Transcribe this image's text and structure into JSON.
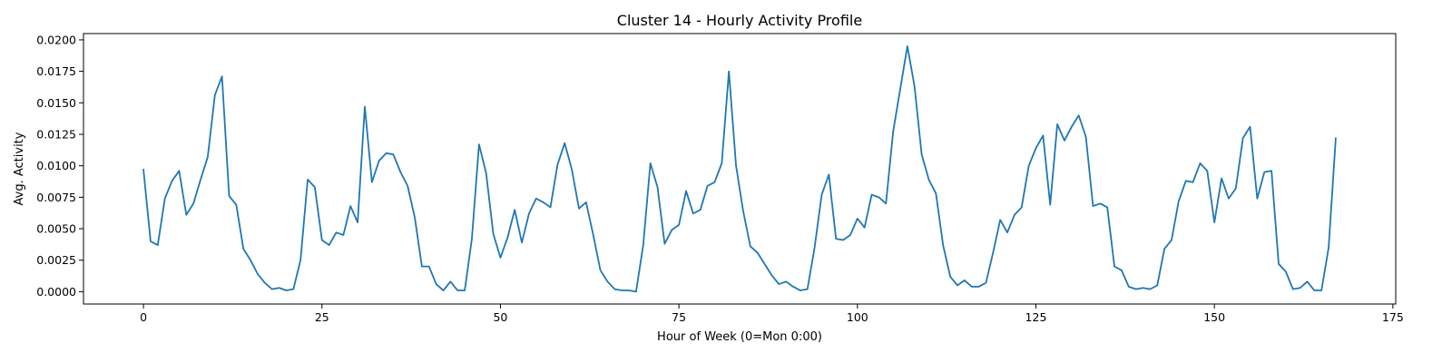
{
  "chart_data": {
    "type": "line",
    "title": "Cluster 14 - Hourly Activity Profile",
    "xlabel": "Hour of Week (0=Mon 0:00)",
    "ylabel": "Avg. Activity",
    "xlim": [
      -8.4,
      175.4
    ],
    "ylim": [
      -0.00098,
      0.0205
    ],
    "xticks": [
      0,
      25,
      50,
      75,
      100,
      125,
      150,
      175
    ],
    "yticks": [
      0.0,
      0.0025,
      0.005,
      0.0075,
      0.01,
      0.0125,
      0.015,
      0.0175,
      0.02
    ],
    "ytick_labels": [
      "0.0000",
      "0.0025",
      "0.0050",
      "0.0075",
      "0.0100",
      "0.0125",
      "0.0150",
      "0.0175",
      "0.0200"
    ],
    "grid": false,
    "series": [
      {
        "color": "#1f77b4",
        "x_start": 0,
        "x_step": 1,
        "values": [
          0.0097,
          0.004,
          0.0037,
          0.0074,
          0.0088,
          0.0096,
          0.0061,
          0.007,
          0.0089,
          0.0107,
          0.0156,
          0.0171,
          0.0076,
          0.0069,
          0.0034,
          0.0025,
          0.0014,
          0.0007,
          0.0002,
          0.0003,
          0.0001,
          0.0002,
          0.0025,
          0.0089,
          0.0083,
          0.0041,
          0.0037,
          0.0047,
          0.0045,
          0.0068,
          0.0055,
          0.0147,
          0.0087,
          0.0104,
          0.011,
          0.0109,
          0.0095,
          0.0084,
          0.0059,
          0.002,
          0.002,
          0.0006,
          0.0001,
          0.0008,
          0.0001,
          0.0001,
          0.0042,
          0.0117,
          0.0094,
          0.0046,
          0.0027,
          0.0043,
          0.0065,
          0.0039,
          0.0062,
          0.0074,
          0.0071,
          0.0067,
          0.0101,
          0.0118,
          0.0097,
          0.0066,
          0.0071,
          0.0045,
          0.0017,
          0.0008,
          0.0002,
          0.0001,
          0.0001,
          0.0,
          0.0037,
          0.0102,
          0.0083,
          0.0038,
          0.0049,
          0.0053,
          0.008,
          0.0062,
          0.0065,
          0.0084,
          0.0087,
          0.0102,
          0.0175,
          0.01,
          0.0064,
          0.0036,
          0.0031,
          0.0022,
          0.0013,
          0.0006,
          0.0008,
          0.0004,
          0.0001,
          0.0002,
          0.0035,
          0.0077,
          0.0093,
          0.0042,
          0.0041,
          0.0045,
          0.0058,
          0.0051,
          0.0077,
          0.0075,
          0.007,
          0.0127,
          0.0161,
          0.0195,
          0.0163,
          0.0109,
          0.0089,
          0.0078,
          0.0037,
          0.0012,
          0.0005,
          0.0009,
          0.0004,
          0.0004,
          0.0007,
          0.0031,
          0.0057,
          0.0047,
          0.0061,
          0.0067,
          0.01,
          0.0114,
          0.0124,
          0.0069,
          0.0133,
          0.012,
          0.0131,
          0.014,
          0.0123,
          0.0068,
          0.007,
          0.0067,
          0.002,
          0.0017,
          0.0004,
          0.0002,
          0.0003,
          0.0002,
          0.0005,
          0.0034,
          0.0041,
          0.0072,
          0.0088,
          0.0087,
          0.0102,
          0.0096,
          0.0055,
          0.009,
          0.0074,
          0.0082,
          0.0122,
          0.0131,
          0.0074,
          0.0095,
          0.0096,
          0.0022,
          0.0016,
          0.0002,
          0.0003,
          0.0008,
          0.0001,
          0.0001,
          0.0035,
          0.0122
        ]
      }
    ]
  }
}
